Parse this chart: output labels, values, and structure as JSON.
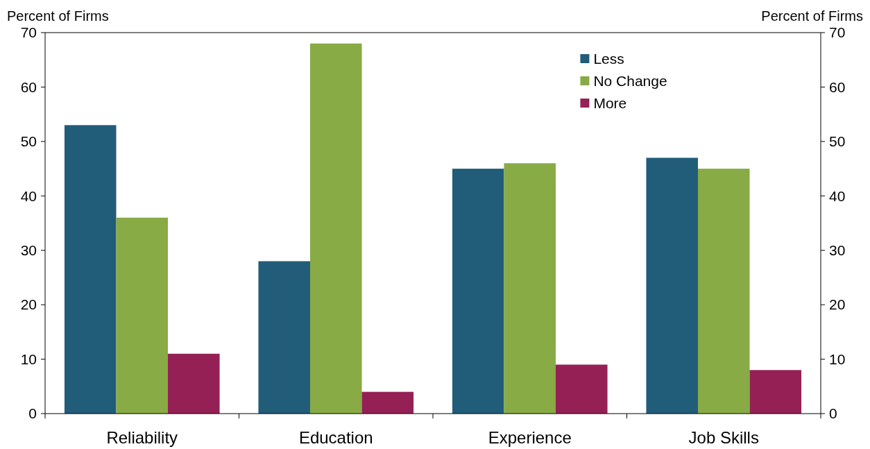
{
  "chart_data": {
    "type": "bar",
    "ylabel": "Percent of Firms",
    "y2label": "Percent of Firms",
    "categories": [
      "Reliability",
      "Education",
      "Experience",
      "Job Skills"
    ],
    "series": [
      {
        "name": "Less",
        "color": "#215d79",
        "values": [
          53,
          28,
          45,
          47
        ]
      },
      {
        "name": "No Change",
        "color": "#88ab45",
        "values": [
          36,
          68,
          46,
          45
        ]
      },
      {
        "name": "More",
        "color": "#952055",
        "values": [
          11,
          4,
          9,
          8
        ]
      }
    ],
    "ylim": [
      0,
      70
    ],
    "yticks": [
      0,
      10,
      20,
      30,
      40,
      50,
      60,
      70
    ],
    "y2lim": [
      0,
      70
    ],
    "y2ticks": [
      0,
      10,
      20,
      30,
      40,
      50,
      60,
      70
    ],
    "legend": "top right",
    "grid": false
  }
}
